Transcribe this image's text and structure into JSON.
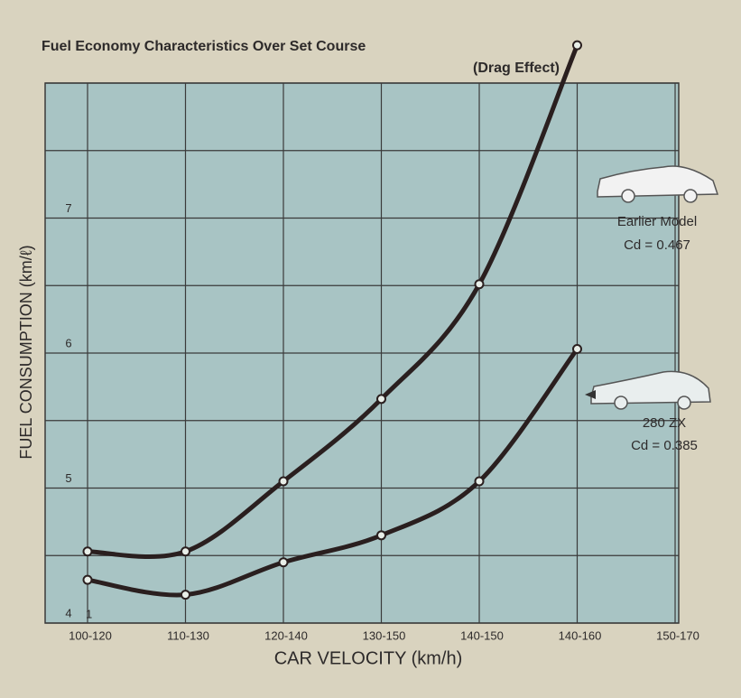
{
  "chart_data": {
    "type": "line",
    "title": "Fuel Economy Characteristics Over Set Course",
    "subtitle": "(Drag Effect)",
    "y_label": "FUEL CONSUMPTION (km/ℓ)",
    "x_label": "CAR VELOCITY (km/h)",
    "annotation": "1",
    "categories": [
      "100-120",
      "110-130",
      "120-140",
      "130-150",
      "140-150",
      "140-160",
      "150-170"
    ],
    "series": [
      {
        "name": "Earlier Model",
        "detail": "Cd = 0.467",
        "color": "#2a1f1f",
        "values": [
          4.53,
          4.53,
          5.05,
          5.66,
          6.51,
          8.28,
          null
        ]
      },
      {
        "name": "280 ZX",
        "detail": "Cd = 0.385",
        "color": "#2a1f1f",
        "values": [
          4.32,
          4.21,
          4.45,
          4.65,
          5.05,
          6.03,
          null
        ]
      }
    ],
    "ylim": [
      4,
      8
    ],
    "yticks": [
      4,
      5,
      6,
      7
    ],
    "minor_yticks": [
      4.5,
      5.5,
      6.5,
      7.5,
      8
    ],
    "grid": true,
    "plot_color": "#a8c4c4",
    "grid_color": "#3a3a3a"
  }
}
